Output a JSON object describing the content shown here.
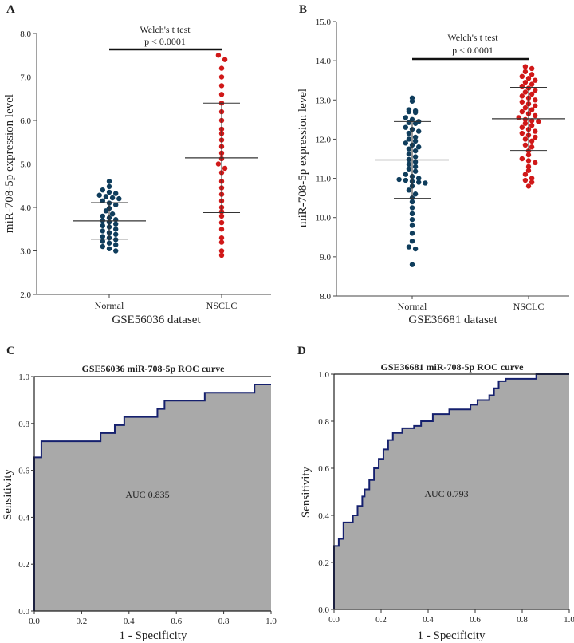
{
  "chart_data": [
    {
      "panel": "A",
      "type": "scatter",
      "title": "",
      "xlabel": "GSE56036 dataset",
      "ylabel": "miR-708-5p expression level",
      "ylim": [
        2.0,
        8.0
      ],
      "yticks": [
        "2.0",
        "3.0",
        "4.0",
        "5.0",
        "6.0",
        "7.0",
        "8.0"
      ],
      "test_label": "Welch's t test",
      "p_label": "p < 0.0001",
      "groups": [
        {
          "name": "Normal",
          "color": "#0f3d5c",
          "mean": 3.69,
          "sd_low": 3.27,
          "sd_high": 4.11,
          "values": [
            4.6,
            4.48,
            4.4,
            4.35,
            4.32,
            4.28,
            4.25,
            4.22,
            4.2,
            4.15,
            4.1,
            4.06,
            3.98,
            3.92,
            3.85,
            3.8,
            3.76,
            3.72,
            3.7,
            3.66,
            3.62,
            3.58,
            3.55,
            3.5,
            3.46,
            3.42,
            3.38,
            3.33,
            3.3,
            3.26,
            3.22,
            3.18,
            3.14,
            3.1,
            3.05,
            3.0
          ]
        },
        {
          "name": "NSCLC",
          "color": "#d01818",
          "mean": 5.14,
          "sd_low": 3.88,
          "sd_high": 6.4,
          "values": [
            7.5,
            7.4,
            7.2,
            7.0,
            6.8,
            6.6,
            6.4,
            6.2,
            6.0,
            5.8,
            5.7,
            5.55,
            5.4,
            5.25,
            5.12,
            5.0,
            4.9,
            4.8,
            4.6,
            4.45,
            4.3,
            4.15,
            4.0,
            3.9,
            3.8,
            3.65,
            3.5,
            3.3,
            3.2,
            3.0,
            2.9
          ]
        }
      ]
    },
    {
      "panel": "B",
      "type": "scatter",
      "title": "",
      "xlabel": "GSE36681 dataset",
      "ylabel": "miR-708-5p expression level",
      "ylim": [
        8.0,
        15.0
      ],
      "yticks": [
        "8.0",
        "9.0",
        "10.0",
        "11.0",
        "12.0",
        "13.0",
        "14.0",
        "15.0"
      ],
      "test_label": "Welch's t test",
      "p_label": "p < 0.0001",
      "groups": [
        {
          "name": "Normal",
          "color": "#0f3d5c",
          "mean": 11.47,
          "sd_low": 10.49,
          "sd_high": 12.45,
          "values": [
            13.05,
            12.97,
            12.75,
            12.72,
            12.7,
            12.68,
            12.55,
            12.5,
            12.45,
            12.42,
            12.4,
            12.3,
            12.25,
            12.2,
            12.15,
            12.05,
            12.0,
            11.95,
            11.9,
            11.85,
            11.8,
            11.75,
            11.7,
            11.62,
            11.55,
            11.48,
            11.42,
            11.36,
            11.3,
            11.24,
            11.18,
            11.1,
            11.05,
            11.0,
            10.97,
            10.95,
            10.92,
            10.9,
            10.88,
            10.8,
            10.7,
            10.6,
            10.5,
            10.4,
            10.25,
            10.1,
            9.95,
            9.8,
            9.6,
            9.4,
            9.25,
            9.2,
            8.8
          ]
        },
        {
          "name": "NSCLC",
          "color": "#d01818",
          "mean": 12.52,
          "sd_low": 11.71,
          "sd_high": 13.32,
          "values": [
            13.85,
            13.8,
            13.72,
            13.65,
            13.6,
            13.55,
            13.5,
            13.45,
            13.4,
            13.35,
            13.3,
            13.25,
            13.2,
            13.15,
            13.1,
            13.05,
            13.0,
            12.95,
            12.9,
            12.85,
            12.8,
            12.75,
            12.7,
            12.65,
            12.6,
            12.55,
            12.5,
            12.47,
            12.45,
            12.4,
            12.35,
            12.3,
            12.25,
            12.2,
            12.15,
            12.1,
            12.05,
            12.0,
            11.95,
            11.85,
            11.8,
            11.7,
            11.6,
            11.5,
            11.45,
            11.4,
            11.3,
            11.2,
            11.1,
            11.0,
            10.95,
            10.9,
            10.8
          ]
        }
      ]
    },
    {
      "panel": "C",
      "type": "area",
      "title": "GSE56036 miR-708-5p ROC curve",
      "xlabel": "1 - Specificity",
      "ylabel": "Sensitivity",
      "xlim": [
        0.0,
        1.0
      ],
      "ylim": [
        0.0,
        1.0
      ],
      "xticks": [
        "0.0",
        "0.2",
        "0.4",
        "0.6",
        "0.8",
        "1.0"
      ],
      "yticks": [
        "0.0",
        "0.2",
        "0.4",
        "0.6",
        "0.8",
        "1.0"
      ],
      "auc_label": "AUC 0.835",
      "fill_color": "#a9a9a9",
      "line_color": "#15206e",
      "x": [
        0,
        0,
        0.03,
        0.03,
        0.28,
        0.28,
        0.34,
        0.34,
        0.38,
        0.38,
        0.52,
        0.52,
        0.55,
        0.55,
        0.72,
        0.72,
        0.93,
        0.93,
        1.0
      ],
      "y": [
        0,
        0.655,
        0.655,
        0.724,
        0.724,
        0.759,
        0.759,
        0.793,
        0.793,
        0.828,
        0.828,
        0.862,
        0.862,
        0.897,
        0.897,
        0.931,
        0.931,
        0.966,
        0.966
      ]
    },
    {
      "panel": "D",
      "type": "area",
      "title": "GSE36681 miR-708-5p ROC curve",
      "xlabel": "1 - Specificity",
      "ylabel": "Sensitivity",
      "xlim": [
        0.0,
        1.0
      ],
      "ylim": [
        0.0,
        1.0
      ],
      "xticks": [
        "0.0",
        "0.2",
        "0.4",
        "0.6",
        "0.8",
        "1.0"
      ],
      "yticks": [
        "0.0",
        "0.2",
        "0.4",
        "0.6",
        "0.8",
        "1.0"
      ],
      "auc_label": "AUC 0.793",
      "fill_color": "#a9a9a9",
      "line_color": "#15206e",
      "x": [
        0,
        0,
        0.02,
        0.02,
        0.04,
        0.04,
        0.08,
        0.08,
        0.1,
        0.1,
        0.12,
        0.12,
        0.13,
        0.13,
        0.15,
        0.15,
        0.17,
        0.17,
        0.19,
        0.19,
        0.21,
        0.21,
        0.23,
        0.23,
        0.25,
        0.25,
        0.29,
        0.29,
        0.34,
        0.34,
        0.37,
        0.37,
        0.42,
        0.42,
        0.49,
        0.49,
        0.58,
        0.58,
        0.61,
        0.61,
        0.66,
        0.66,
        0.68,
        0.68,
        0.7,
        0.7,
        0.73,
        0.73,
        0.86,
        0.86,
        1.0
      ],
      "y": [
        0,
        0.27,
        0.27,
        0.3,
        0.3,
        0.37,
        0.37,
        0.4,
        0.4,
        0.44,
        0.44,
        0.48,
        0.48,
        0.51,
        0.51,
        0.55,
        0.55,
        0.6,
        0.6,
        0.64,
        0.64,
        0.68,
        0.68,
        0.72,
        0.72,
        0.75,
        0.75,
        0.77,
        0.77,
        0.78,
        0.78,
        0.8,
        0.8,
        0.83,
        0.83,
        0.85,
        0.85,
        0.87,
        0.87,
        0.89,
        0.89,
        0.91,
        0.91,
        0.94,
        0.94,
        0.97,
        0.97,
        0.98,
        0.98,
        1.0,
        1.0
      ]
    }
  ]
}
